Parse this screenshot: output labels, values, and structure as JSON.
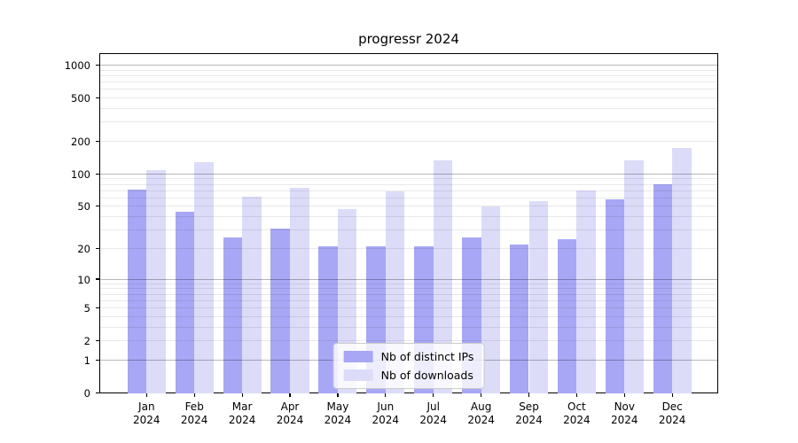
{
  "title": "progressr 2024",
  "chart_data": {
    "type": "bar",
    "title": "progressr 2024",
    "yscale": "log1p",
    "y_tick_values": [
      0,
      1,
      2,
      5,
      10,
      20,
      50,
      100,
      200,
      500,
      1000
    ],
    "y_axis_max": 1300,
    "grid": {
      "horizontal": true,
      "minor_log_lines": true,
      "vertical": false
    },
    "x_tick_year": "2024",
    "x_tick_months": [
      "Jan",
      "Feb",
      "Mar",
      "Apr",
      "May",
      "Jun",
      "Jul",
      "Aug",
      "Sep",
      "Oct",
      "Nov",
      "Dec"
    ],
    "categories": [
      "Jan 2024",
      "Feb 2024",
      "Mar 2024",
      "Apr 2024",
      "May 2024",
      "Jun 2024",
      "Jul 2024",
      "Aug 2024",
      "Sep 2024",
      "Oct 2024",
      "Nov 2024",
      "Dec 2024"
    ],
    "series": [
      {
        "name": "Nb of distinct IPs",
        "color": "#a7a7f5",
        "values": [
          73,
          45,
          26,
          31,
          21,
          21,
          21,
          26,
          22,
          25,
          59,
          81
        ]
      },
      {
        "name": "Nb of downloads",
        "color": "#dcdcf9",
        "values": [
          110,
          130,
          62,
          75,
          48,
          70,
          135,
          50,
          57,
          71,
          135,
          176
        ]
      }
    ],
    "legend_position": "lower-center-inside"
  },
  "legend": {
    "items": [
      {
        "label": "Nb of distinct IPs",
        "color": "#a7a7f5"
      },
      {
        "label": "Nb of downloads",
        "color": "#dcdcf9"
      }
    ]
  },
  "colors": {
    "background": "#ffffff",
    "spine": "#000000",
    "major_grid": "rgba(0,0,0,0.28)",
    "minor_grid": "rgba(0,0,0,0.085)",
    "bar_distinct_ips": "#a7a7f5",
    "bar_downloads": "#dcdcf9"
  }
}
